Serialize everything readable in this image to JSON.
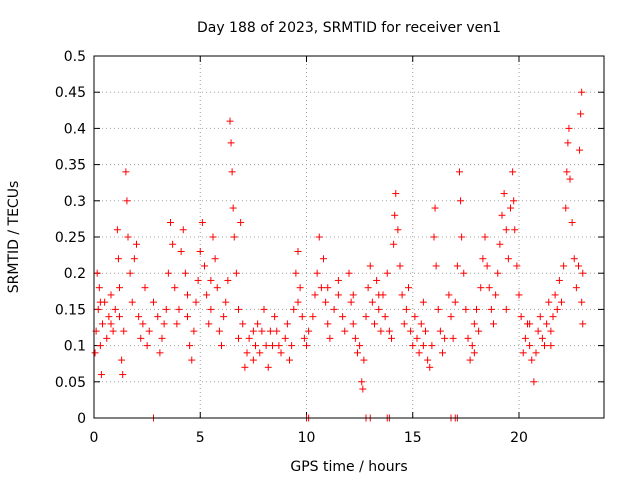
{
  "chart_data": {
    "type": "scatter",
    "title": "Day 188 of 2023, SRMTID for receiver ven1",
    "xlabel": "GPS time / hours",
    "ylabel": "SRMTID / TECUs",
    "xlim": [
      0,
      24
    ],
    "ylim": [
      0,
      0.5
    ],
    "xticks": [
      0,
      5,
      10,
      15,
      20
    ],
    "xtick_labels": [
      "0",
      "5",
      "10",
      "15",
      "20"
    ],
    "yticks": [
      0,
      0.05,
      0.1,
      0.15,
      0.2,
      0.25,
      0.3,
      0.35,
      0.4,
      0.45,
      0.5
    ],
    "ytick_labels": [
      "0",
      "0.05",
      "0.1",
      "0.15",
      "0.2",
      "0.25",
      "0.3",
      "0.35",
      "0.4",
      "0.45",
      "0.5"
    ],
    "grid": true,
    "marker": "plus",
    "color": "#ff0000",
    "series": [
      {
        "name": "SRMTID",
        "points": [
          [
            0.05,
            0.09
          ],
          [
            0.1,
            0.12
          ],
          [
            0.15,
            0.2
          ],
          [
            0.2,
            0.15
          ],
          [
            0.25,
            0.18
          ],
          [
            0.3,
            0.1
          ],
          [
            0.35,
            0.06
          ],
          [
            0.4,
            0.13
          ],
          [
            0.5,
            0.16
          ],
          [
            0.6,
            0.11
          ],
          [
            0.7,
            0.14
          ],
          [
            0.8,
            0.17
          ],
          [
            0.9,
            0.12
          ],
          [
            1.0,
            0.15
          ],
          [
            1.1,
            0.26
          ],
          [
            1.15,
            0.22
          ],
          [
            1.2,
            0.18
          ],
          [
            1.3,
            0.08
          ],
          [
            1.35,
            0.06
          ],
          [
            1.4,
            0.12
          ],
          [
            1.5,
            0.34
          ],
          [
            1.55,
            0.3
          ],
          [
            1.6,
            0.25
          ],
          [
            1.7,
            0.2
          ],
          [
            1.8,
            0.16
          ],
          [
            1.9,
            0.22
          ],
          [
            2.0,
            0.24
          ],
          [
            2.1,
            0.14
          ],
          [
            2.2,
            0.11
          ],
          [
            2.3,
            0.13
          ],
          [
            2.5,
            0.1
          ],
          [
            2.6,
            0.12
          ],
          [
            2.8,
            0.16
          ],
          [
            3.0,
            0.14
          ],
          [
            3.1,
            0.09
          ],
          [
            3.2,
            0.11
          ],
          [
            3.4,
            0.15
          ],
          [
            3.5,
            0.2
          ],
          [
            3.6,
            0.27
          ],
          [
            3.7,
            0.24
          ],
          [
            3.8,
            0.18
          ],
          [
            3.9,
            0.13
          ],
          [
            4.0,
            0.15
          ],
          [
            4.1,
            0.23
          ],
          [
            4.2,
            0.26
          ],
          [
            4.3,
            0.2
          ],
          [
            4.4,
            0.14
          ],
          [
            4.5,
            0.1
          ],
          [
            4.6,
            0.08
          ],
          [
            4.7,
            0.12
          ],
          [
            4.8,
            0.16
          ],
          [
            4.9,
            0.19
          ],
          [
            5.0,
            0.23
          ],
          [
            5.1,
            0.27
          ],
          [
            5.2,
            0.21
          ],
          [
            5.3,
            0.17
          ],
          [
            5.4,
            0.13
          ],
          [
            5.5,
            0.15
          ],
          [
            5.6,
            0.25
          ],
          [
            5.7,
            0.22
          ],
          [
            5.8,
            0.18
          ],
          [
            5.9,
            0.12
          ],
          [
            6.0,
            0.1
          ],
          [
            6.1,
            0.14
          ],
          [
            6.2,
            0.16
          ],
          [
            6.3,
            0.19
          ],
          [
            6.4,
            0.41
          ],
          [
            6.45,
            0.38
          ],
          [
            6.5,
            0.34
          ],
          [
            6.55,
            0.29
          ],
          [
            6.6,
            0.25
          ],
          [
            6.7,
            0.2
          ],
          [
            6.8,
            0.15
          ],
          [
            6.9,
            0.27
          ],
          [
            7.0,
            0.13
          ],
          [
            7.1,
            0.07
          ],
          [
            7.2,
            0.09
          ],
          [
            7.3,
            0.11
          ],
          [
            7.5,
            0.08
          ],
          [
            7.6,
            0.1
          ],
          [
            7.7,
            0.13
          ],
          [
            7.8,
            0.09
          ],
          [
            7.9,
            0.12
          ],
          [
            8.0,
            0.15
          ],
          [
            8.1,
            0.1
          ],
          [
            8.2,
            0.07
          ],
          [
            8.3,
            0.12
          ],
          [
            8.4,
            0.1
          ],
          [
            8.5,
            0.14
          ],
          [
            8.6,
            0.12
          ],
          [
            8.8,
            0.09
          ],
          [
            9.0,
            0.11
          ],
          [
            9.1,
            0.13
          ],
          [
            9.2,
            0.08
          ],
          [
            9.3,
            0.1
          ],
          [
            9.4,
            0.15
          ],
          [
            9.5,
            0.2
          ],
          [
            9.6,
            0.23
          ],
          [
            9.7,
            0.18
          ],
          [
            9.8,
            0.14
          ],
          [
            9.9,
            0.11
          ],
          [
            10.0,
            0.1
          ],
          [
            10.1,
            0.12
          ],
          [
            10.3,
            0.14
          ],
          [
            10.4,
            0.17
          ],
          [
            10.5,
            0.2
          ],
          [
            10.6,
            0.25
          ],
          [
            10.7,
            0.18
          ],
          [
            10.8,
            0.22
          ],
          [
            10.9,
            0.16
          ],
          [
            11.0,
            0.13
          ],
          [
            11.1,
            0.11
          ],
          [
            11.3,
            0.15
          ],
          [
            11.5,
            0.17
          ],
          [
            11.7,
            0.14
          ],
          [
            11.8,
            0.12
          ],
          [
            12.0,
            0.2
          ],
          [
            12.1,
            0.16
          ],
          [
            12.2,
            0.13
          ],
          [
            12.3,
            0.11
          ],
          [
            12.4,
            0.09
          ],
          [
            12.5,
            0.1
          ],
          [
            12.6,
            0.05
          ],
          [
            12.65,
            0.04
          ],
          [
            12.7,
            0.08
          ],
          [
            12.8,
            0.14
          ],
          [
            12.9,
            0.18
          ],
          [
            13.0,
            0.21
          ],
          [
            13.1,
            0.16
          ],
          [
            13.2,
            0.13
          ],
          [
            13.3,
            0.19
          ],
          [
            13.4,
            0.15
          ],
          [
            13.5,
            0.12
          ],
          [
            13.6,
            0.17
          ],
          [
            13.7,
            0.14
          ],
          [
            13.8,
            0.2
          ],
          [
            13.9,
            0.12
          ],
          [
            14.0,
            0.11
          ],
          [
            14.1,
            0.24
          ],
          [
            14.15,
            0.28
          ],
          [
            14.2,
            0.31
          ],
          [
            14.3,
            0.26
          ],
          [
            14.4,
            0.21
          ],
          [
            14.5,
            0.17
          ],
          [
            14.6,
            0.13
          ],
          [
            14.7,
            0.15
          ],
          [
            14.8,
            0.18
          ],
          [
            14.9,
            0.12
          ],
          [
            15.0,
            0.1
          ],
          [
            15.1,
            0.14
          ],
          [
            15.2,
            0.11
          ],
          [
            15.3,
            0.09
          ],
          [
            15.4,
            0.13
          ],
          [
            15.5,
            0.16
          ],
          [
            15.6,
            0.12
          ],
          [
            15.7,
            0.08
          ],
          [
            15.8,
            0.07
          ],
          [
            15.9,
            0.1
          ],
          [
            16.0,
            0.25
          ],
          [
            16.05,
            0.29
          ],
          [
            16.1,
            0.21
          ],
          [
            16.2,
            0.15
          ],
          [
            16.3,
            0.12
          ],
          [
            16.4,
            0.09
          ],
          [
            16.5,
            0.11
          ],
          [
            16.7,
            0.17
          ],
          [
            16.8,
            0.14
          ],
          [
            16.9,
            0.11
          ],
          [
            17.0,
            0.16
          ],
          [
            17.1,
            0.21
          ],
          [
            17.2,
            0.34
          ],
          [
            17.25,
            0.3
          ],
          [
            17.3,
            0.25
          ],
          [
            17.4,
            0.2
          ],
          [
            17.5,
            0.15
          ],
          [
            17.6,
            0.11
          ],
          [
            17.7,
            0.08
          ],
          [
            17.8,
            0.1
          ],
          [
            17.9,
            0.13
          ],
          [
            18.0,
            0.15
          ],
          [
            18.1,
            0.12
          ],
          [
            18.2,
            0.18
          ],
          [
            18.3,
            0.22
          ],
          [
            18.4,
            0.25
          ],
          [
            18.5,
            0.21
          ],
          [
            18.6,
            0.18
          ],
          [
            18.7,
            0.15
          ],
          [
            18.8,
            0.13
          ],
          [
            18.9,
            0.17
          ],
          [
            19.0,
            0.2
          ],
          [
            19.1,
            0.24
          ],
          [
            19.2,
            0.28
          ],
          [
            19.3,
            0.31
          ],
          [
            19.4,
            0.26
          ],
          [
            19.5,
            0.22
          ],
          [
            19.6,
            0.29
          ],
          [
            19.7,
            0.34
          ],
          [
            19.75,
            0.3
          ],
          [
            19.8,
            0.26
          ],
          [
            19.9,
            0.21
          ],
          [
            20.0,
            0.17
          ],
          [
            20.1,
            0.14
          ],
          [
            20.2,
            0.09
          ],
          [
            20.3,
            0.11
          ],
          [
            20.4,
            0.13
          ],
          [
            20.5,
            0.1
          ],
          [
            20.6,
            0.08
          ],
          [
            20.7,
            0.05
          ],
          [
            20.8,
            0.09
          ],
          [
            20.9,
            0.12
          ],
          [
            21.0,
            0.14
          ],
          [
            21.1,
            0.11
          ],
          [
            21.2,
            0.1
          ],
          [
            21.3,
            0.13
          ],
          [
            21.4,
            0.16
          ],
          [
            21.5,
            0.12
          ],
          [
            21.6,
            0.14
          ],
          [
            21.7,
            0.17
          ],
          [
            21.8,
            0.15
          ],
          [
            21.9,
            0.19
          ],
          [
            22.0,
            0.16
          ],
          [
            22.1,
            0.21
          ],
          [
            22.2,
            0.29
          ],
          [
            22.25,
            0.34
          ],
          [
            22.3,
            0.38
          ],
          [
            22.35,
            0.4
          ],
          [
            22.4,
            0.33
          ],
          [
            22.5,
            0.27
          ],
          [
            22.6,
            0.22
          ],
          [
            22.7,
            0.18
          ],
          [
            22.8,
            0.21
          ],
          [
            22.85,
            0.37
          ],
          [
            22.9,
            0.42
          ],
          [
            22.95,
            0.45
          ],
          [
            23.0,
            0.2
          ],
          [
            22.95,
            0.16
          ],
          [
            23.0,
            0.13
          ],
          [
            0.3,
            0.16
          ],
          [
            0.8,
            0.13
          ],
          [
            1.2,
            0.14
          ],
          [
            2.4,
            0.18
          ],
          [
            3.3,
            0.13
          ],
          [
            4.4,
            0.17
          ],
          [
            5.5,
            0.19
          ],
          [
            6.8,
            0.11
          ],
          [
            7.5,
            0.12
          ],
          [
            8.7,
            0.1
          ],
          [
            9.6,
            0.16
          ],
          [
            11.0,
            0.18
          ],
          [
            11.5,
            0.19
          ],
          [
            12.2,
            0.17
          ],
          [
            13.4,
            0.17
          ],
          [
            15.5,
            0.1
          ],
          [
            17.9,
            0.09
          ],
          [
            19.4,
            0.15
          ],
          [
            20.5,
            0.13
          ],
          [
            21.5,
            0.1
          ],
          [
            2.8,
            0.0
          ],
          [
            10.0,
            0.0
          ],
          [
            10.1,
            0.0
          ],
          [
            12.8,
            0.0
          ],
          [
            13.0,
            0.0
          ],
          [
            13.8,
            0.0
          ],
          [
            13.9,
            0.0
          ],
          [
            16.8,
            0.0
          ],
          [
            17.0,
            0.0
          ],
          [
            17.1,
            0.0
          ]
        ]
      }
    ]
  }
}
